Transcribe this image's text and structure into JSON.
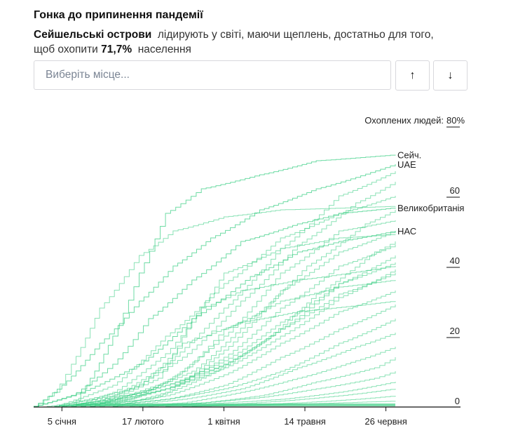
{
  "header": {
    "title": "Гонка до припинення пандемії",
    "leader": "Сейшельські острови",
    "text1": "лідирують у світі, маючи щеплень, достатньо для того,",
    "text2": "щоб охопити",
    "value": "71,7%",
    "text3": "населення"
  },
  "search": {
    "placeholder": "Виберіть місце..."
  },
  "buttons": {
    "up": "↑",
    "down": "↓",
    "up_icon": "arrow-up-icon",
    "down_icon": "arrow-down-icon"
  },
  "chart_data": {
    "type": "line",
    "ylabel_prefix": "Охоплених людей:",
    "y_ticks": [
      "0",
      "20",
      "40",
      "60",
      "80%"
    ],
    "y_tick_values": [
      0,
      20,
      40,
      60,
      80
    ],
    "ylim": [
      0,
      80
    ],
    "x_ticks": [
      {
        "date": "2021-01-05",
        "label": "5 січня"
      },
      {
        "date": "2021-02-17",
        "label": "17 лютого"
      },
      {
        "date": "2021-04-01",
        "label": "1 квітня"
      },
      {
        "date": "2021-05-14",
        "label": "14 травня"
      },
      {
        "date": "2021-06-26",
        "label": "26 червня"
      }
    ],
    "xlim": [
      "2020-12-21",
      "2021-07-01"
    ],
    "color": "#3ecf85",
    "series": [
      {
        "name": "Сейч.",
        "points": [
          [
            "2021-01-10",
            0
          ],
          [
            "2021-01-20",
            8
          ],
          [
            "2021-02-01",
            20
          ],
          [
            "2021-02-15",
            38
          ],
          [
            "2021-03-01",
            55
          ],
          [
            "2021-03-20",
            62
          ],
          [
            "2021-04-20",
            66
          ],
          [
            "2021-05-20",
            70
          ],
          [
            "2021-07-01",
            71.7
          ]
        ]
      },
      {
        "name": "UAE",
        "points": [
          [
            "2020-12-21",
            0
          ],
          [
            "2021-01-05",
            6
          ],
          [
            "2021-01-25",
            18
          ],
          [
            "2021-02-15",
            30
          ],
          [
            "2021-03-05",
            40
          ],
          [
            "2021-03-25",
            48
          ],
          [
            "2021-04-20",
            56
          ],
          [
            "2021-05-20",
            62
          ],
          [
            "2021-07-01",
            69
          ]
        ]
      },
      {
        "name": "Великобританія",
        "points": [
          [
            "2020-12-21",
            0
          ],
          [
            "2021-01-10",
            3
          ],
          [
            "2021-02-01",
            12
          ],
          [
            "2021-02-20",
            25
          ],
          [
            "2021-03-15",
            36
          ],
          [
            "2021-04-10",
            47
          ],
          [
            "2021-05-10",
            52
          ],
          [
            "2021-06-01",
            55
          ],
          [
            "2021-07-01",
            56.6
          ]
        ]
      },
      {
        "name": "НАС",
        "points": [
          [
            "2020-12-21",
            0
          ],
          [
            "2021-01-15",
            4
          ],
          [
            "2021-02-15",
            12
          ],
          [
            "2021-03-15",
            25
          ],
          [
            "2021-04-15",
            37
          ],
          [
            "2021-05-10",
            44
          ],
          [
            "2021-06-01",
            47
          ],
          [
            "2021-07-01",
            50
          ]
        ]
      },
      {
        "points": [
          [
            "2020-12-21",
            0
          ],
          [
            "2021-01-01",
            4
          ],
          [
            "2021-01-10",
            12
          ],
          [
            "2021-01-25",
            28
          ],
          [
            "2021-02-15",
            43
          ],
          [
            "2021-03-05",
            50
          ],
          [
            "2021-04-01",
            54
          ],
          [
            "2021-05-01",
            56
          ],
          [
            "2021-07-01",
            57
          ]
        ]
      },
      {
        "points": [
          [
            "2020-12-28",
            0
          ],
          [
            "2021-02-01",
            3
          ],
          [
            "2021-03-01",
            12
          ],
          [
            "2021-04-01",
            28
          ],
          [
            "2021-05-01",
            45
          ],
          [
            "2021-06-01",
            60
          ],
          [
            "2021-07-01",
            67
          ]
        ]
      },
      {
        "points": [
          [
            "2021-01-01",
            0
          ],
          [
            "2021-02-10",
            5
          ],
          [
            "2021-03-10",
            14
          ],
          [
            "2021-04-10",
            30
          ],
          [
            "2021-05-10",
            46
          ],
          [
            "2021-06-10",
            58
          ],
          [
            "2021-07-01",
            64
          ]
        ]
      },
      {
        "points": [
          [
            "2021-01-01",
            0
          ],
          [
            "2021-02-01",
            6
          ],
          [
            "2021-03-01",
            20
          ],
          [
            "2021-04-01",
            35
          ],
          [
            "2021-05-01",
            48
          ],
          [
            "2021-06-01",
            55
          ],
          [
            "2021-07-01",
            60
          ]
        ]
      },
      {
        "points": [
          [
            "2021-01-05",
            0
          ],
          [
            "2021-02-15",
            4
          ],
          [
            "2021-03-15",
            10
          ],
          [
            "2021-04-15",
            25
          ],
          [
            "2021-05-15",
            40
          ],
          [
            "2021-06-15",
            52
          ],
          [
            "2021-07-01",
            56
          ]
        ]
      },
      {
        "points": [
          [
            "2021-01-05",
            0
          ],
          [
            "2021-02-20",
            2
          ],
          [
            "2021-03-20",
            8
          ],
          [
            "2021-04-20",
            18
          ],
          [
            "2021-05-20",
            32
          ],
          [
            "2021-06-20",
            44
          ],
          [
            "2021-07-01",
            47
          ]
        ]
      },
      {
        "points": [
          [
            "2021-01-01",
            0
          ],
          [
            "2021-02-01",
            2
          ],
          [
            "2021-03-01",
            6
          ],
          [
            "2021-04-01",
            12
          ],
          [
            "2021-05-01",
            22
          ],
          [
            "2021-06-01",
            35
          ],
          [
            "2021-07-01",
            43
          ]
        ]
      },
      {
        "points": [
          [
            "2021-01-01",
            0
          ],
          [
            "2021-02-01",
            2
          ],
          [
            "2021-03-01",
            6
          ],
          [
            "2021-04-01",
            13
          ],
          [
            "2021-05-01",
            24
          ],
          [
            "2021-06-01",
            35
          ],
          [
            "2021-07-01",
            41
          ]
        ]
      },
      {
        "points": [
          [
            "2021-01-01",
            0
          ],
          [
            "2021-02-01",
            1.5
          ],
          [
            "2021-03-01",
            5
          ],
          [
            "2021-04-01",
            11
          ],
          [
            "2021-05-01",
            20
          ],
          [
            "2021-06-01",
            31
          ],
          [
            "2021-07-01",
            39
          ]
        ]
      },
      {
        "points": [
          [
            "2021-01-05",
            0
          ],
          [
            "2021-02-01",
            1
          ],
          [
            "2021-03-01",
            5
          ],
          [
            "2021-04-01",
            12
          ],
          [
            "2021-05-01",
            22
          ],
          [
            "2021-06-01",
            32
          ],
          [
            "2021-07-01",
            38
          ]
        ]
      },
      {
        "points": [
          [
            "2021-01-10",
            0
          ],
          [
            "2021-02-10",
            2
          ],
          [
            "2021-03-10",
            10
          ],
          [
            "2021-04-01",
            22
          ],
          [
            "2021-05-01",
            30
          ],
          [
            "2021-06-01",
            34
          ],
          [
            "2021-07-01",
            36
          ]
        ]
      },
      {
        "points": [
          [
            "2021-01-20",
            0
          ],
          [
            "2021-02-25",
            8
          ],
          [
            "2021-03-15",
            25
          ],
          [
            "2021-04-01",
            38
          ],
          [
            "2021-05-01",
            45
          ],
          [
            "2021-06-01",
            48
          ],
          [
            "2021-07-01",
            49
          ]
        ]
      },
      {
        "points": [
          [
            "2021-01-15",
            0
          ],
          [
            "2021-03-01",
            5
          ],
          [
            "2021-04-01",
            14
          ],
          [
            "2021-05-01",
            28
          ],
          [
            "2021-06-01",
            40
          ],
          [
            "2021-07-01",
            46
          ]
        ]
      },
      {
        "points": [
          [
            "2021-01-20",
            0
          ],
          [
            "2021-03-01",
            3
          ],
          [
            "2021-04-01",
            9
          ],
          [
            "2021-05-01",
            18
          ],
          [
            "2021-06-01",
            27
          ],
          [
            "2021-07-01",
            33
          ]
        ]
      },
      {
        "points": [
          [
            "2021-01-20",
            0
          ],
          [
            "2021-03-01",
            2
          ],
          [
            "2021-04-01",
            6
          ],
          [
            "2021-05-01",
            14
          ],
          [
            "2021-06-01",
            22
          ],
          [
            "2021-07-01",
            29
          ]
        ]
      },
      {
        "points": [
          [
            "2021-01-25",
            0
          ],
          [
            "2021-03-01",
            2
          ],
          [
            "2021-04-01",
            5
          ],
          [
            "2021-05-01",
            10
          ],
          [
            "2021-06-01",
            18
          ],
          [
            "2021-07-01",
            25
          ]
        ]
      },
      {
        "points": [
          [
            "2021-02-01",
            0
          ],
          [
            "2021-03-10",
            2
          ],
          [
            "2021-04-10",
            5
          ],
          [
            "2021-05-10",
            11
          ],
          [
            "2021-06-10",
            17
          ],
          [
            "2021-07-01",
            21
          ]
        ]
      },
      {
        "points": [
          [
            "2021-02-01",
            0
          ],
          [
            "2021-03-10",
            1
          ],
          [
            "2021-04-10",
            4
          ],
          [
            "2021-05-10",
            8
          ],
          [
            "2021-06-10",
            13
          ],
          [
            "2021-07-01",
            17
          ]
        ]
      },
      {
        "points": [
          [
            "2021-02-10",
            0
          ],
          [
            "2021-03-20",
            1
          ],
          [
            "2021-04-20",
            3
          ],
          [
            "2021-05-20",
            7
          ],
          [
            "2021-06-20",
            11
          ],
          [
            "2021-07-01",
            14
          ]
        ]
      },
      {
        "points": [
          [
            "2021-02-15",
            0
          ],
          [
            "2021-03-20",
            1
          ],
          [
            "2021-04-20",
            2.5
          ],
          [
            "2021-05-20",
            5
          ],
          [
            "2021-06-20",
            8
          ],
          [
            "2021-07-01",
            10
          ]
        ]
      },
      {
        "points": [
          [
            "2021-02-20",
            0
          ],
          [
            "2021-04-01",
            1
          ],
          [
            "2021-05-01",
            2
          ],
          [
            "2021-06-01",
            4
          ],
          [
            "2021-07-01",
            7
          ]
        ]
      },
      {
        "points": [
          [
            "2021-03-01",
            0
          ],
          [
            "2021-04-01",
            0.5
          ],
          [
            "2021-05-01",
            1.5
          ],
          [
            "2021-06-01",
            3
          ],
          [
            "2021-07-01",
            5
          ]
        ]
      },
      {
        "points": [
          [
            "2021-03-10",
            0
          ],
          [
            "2021-04-10",
            0.4
          ],
          [
            "2021-05-10",
            1
          ],
          [
            "2021-06-10",
            2
          ],
          [
            "2021-07-01",
            3
          ]
        ]
      },
      {
        "points": [
          [
            "2021-03-15",
            0
          ],
          [
            "2021-05-01",
            0.5
          ],
          [
            "2021-06-01",
            1
          ],
          [
            "2021-07-01",
            1.5
          ]
        ]
      },
      {
        "points": [
          [
            "2021-01-10",
            0
          ],
          [
            "2021-02-01",
            4
          ],
          [
            "2021-03-01",
            15
          ],
          [
            "2021-03-20",
            28
          ],
          [
            "2021-04-10",
            33
          ],
          [
            "2021-05-10",
            36
          ],
          [
            "2021-07-01",
            40
          ]
        ]
      },
      {
        "points": [
          [
            "2021-01-15",
            0
          ],
          [
            "2021-02-15",
            6
          ],
          [
            "2021-03-10",
            18
          ],
          [
            "2021-04-10",
            24
          ],
          [
            "2021-05-10",
            27
          ],
          [
            "2021-07-01",
            30
          ]
        ]
      },
      {
        "points": [
          [
            "2021-02-01",
            0
          ],
          [
            "2021-03-01",
            4
          ],
          [
            "2021-04-01",
            16
          ],
          [
            "2021-05-01",
            33
          ],
          [
            "2021-06-01",
            44
          ],
          [
            "2021-07-01",
            50
          ]
        ]
      },
      {
        "points": [
          [
            "2021-01-20",
            0
          ],
          [
            "2021-03-01",
            7
          ],
          [
            "2021-04-01",
            20
          ],
          [
            "2021-05-01",
            38
          ],
          [
            "2021-06-01",
            50
          ],
          [
            "2021-07-01",
            53
          ]
        ]
      }
    ]
  }
}
